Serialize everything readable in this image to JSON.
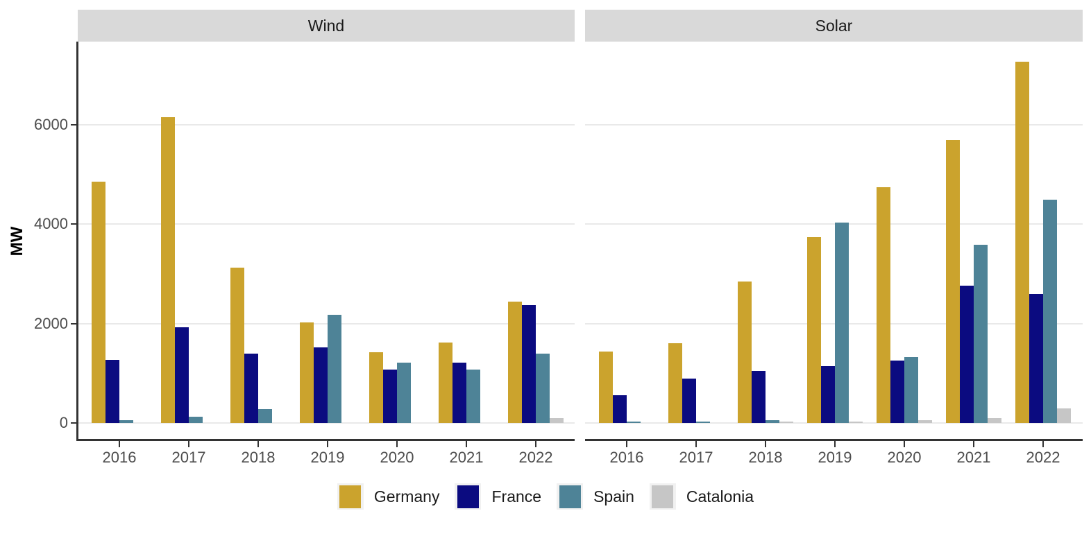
{
  "chart_data": {
    "type": "bar",
    "title": "",
    "xlabel": "",
    "ylabel": "MW",
    "categories": [
      "2016",
      "2017",
      "2018",
      "2019",
      "2020",
      "2021",
      "2022"
    ],
    "yticks": [
      0,
      2000,
      4000,
      6000
    ],
    "ylim": [
      0,
      7670
    ],
    "grid": "horizontal-light-gray",
    "legend_position": "bottom-center",
    "legend": [
      "Germany",
      "France",
      "Spain",
      "Catalonia"
    ],
    "series_colors": {
      "Germany": "#CBA32D",
      "France": "#0B0B80",
      "Spain": "#4E8397",
      "Catalonia": "#C6C6C6"
    },
    "facets": [
      {
        "label": "Wind",
        "series": [
          {
            "name": "Germany",
            "color": "#CBA32D",
            "values": [
              4850,
              6150,
              3130,
              2020,
              1430,
              1620,
              2440
            ]
          },
          {
            "name": "France",
            "color": "#0B0B80",
            "values": [
              1270,
              1930,
              1400,
              1520,
              1070,
              1210,
              2370
            ]
          },
          {
            "name": "Spain",
            "color": "#4E8397",
            "values": [
              50,
              130,
              280,
              2180,
              1220,
              1080,
              1390
            ]
          },
          {
            "name": "Catalonia",
            "color": "#C6C6C6",
            "values": [
              0,
              0,
              0,
              0,
              0,
              0,
              100
            ]
          }
        ]
      },
      {
        "label": "Solar",
        "series": [
          {
            "name": "Germany",
            "color": "#CBA32D",
            "values": [
              1440,
              1600,
              2850,
              3740,
              4750,
              5690,
              7270
            ]
          },
          {
            "name": "France",
            "color": "#0B0B80",
            "values": [
              560,
              900,
              1050,
              1140,
              1250,
              2760,
              2590
            ]
          },
          {
            "name": "Spain",
            "color": "#4E8397",
            "values": [
              25,
              25,
              55,
              4040,
              1330,
              3580,
              4490
            ]
          },
          {
            "name": "Catalonia",
            "color": "#C6C6C6",
            "values": [
              0,
              0,
              25,
              30,
              60,
              100,
              290
            ]
          }
        ]
      }
    ]
  },
  "axis_colors": {
    "tick_label": "#4D4D4D",
    "axis_line": "#333333",
    "gridline": "#E9E9E9",
    "strip_background": "#D9D9D9"
  }
}
